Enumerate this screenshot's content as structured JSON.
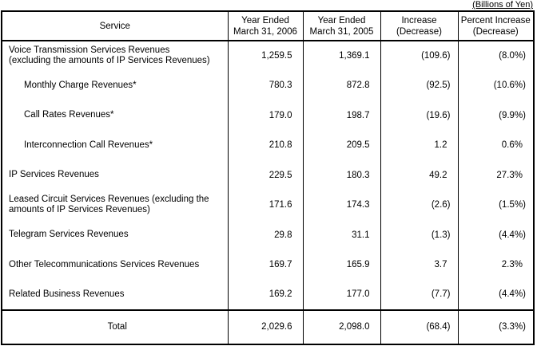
{
  "units_note": "(Billions of Yen)",
  "columns": {
    "service": "Service",
    "y2006": [
      "Year Ended",
      "March 31, 2006"
    ],
    "y2005": [
      "Year Ended",
      "March 31, 2005"
    ],
    "increase": [
      "Increase",
      "(Decrease)"
    ],
    "percent": [
      "Percent Increase",
      "(Decrease)"
    ]
  },
  "rows": [
    {
      "service": [
        "Voice Transmission Services Revenues",
        "(excluding the amounts of IP Services Revenues)"
      ],
      "y2006": "1,259.5",
      "y2005": "1,369.1",
      "inc": "(109.6)",
      "pct": "(8.0%)"
    },
    {
      "service": [
        "Monthly Charge Revenues*"
      ],
      "y2006": "780.3",
      "y2005": "872.8",
      "inc": "(92.5)",
      "pct": "(10.6%)"
    },
    {
      "service": [
        "Call Rates Revenues*"
      ],
      "y2006": "179.0",
      "y2005": "198.7",
      "inc": "(19.6)",
      "pct": "(9.9%)"
    },
    {
      "service": [
        "Interconnection Call Revenues*"
      ],
      "y2006": "210.8",
      "y2005": "209.5",
      "inc": "1.2",
      "pct": "0.6%"
    },
    {
      "service": [
        "IP Services Revenues"
      ],
      "y2006": "229.5",
      "y2005": "180.3",
      "inc": "49.2",
      "pct": "27.3%"
    },
    {
      "service": [
        "Leased Circuit Services Revenues (excluding the",
        "amounts of IP Services Revenues)"
      ],
      "y2006": "171.6",
      "y2005": "174.3",
      "inc": "(2.6)",
      "pct": "(1.5%)"
    },
    {
      "service": [
        "Telegram Services Revenues"
      ],
      "y2006": "29.8",
      "y2005": "31.1",
      "inc": "(1.3)",
      "pct": "(4.4%)"
    },
    {
      "service": [
        "Other Telecommunications Services Revenues"
      ],
      "y2006": "169.7",
      "y2005": "165.9",
      "inc": "3.7",
      "pct": "2.3%"
    },
    {
      "service": [
        "Related Business Revenues"
      ],
      "y2006": "169.2",
      "y2005": "177.0",
      "inc": "(7.7)",
      "pct": "(4.4%)"
    }
  ],
  "total": {
    "label": "Total",
    "y2006": "2,029.6",
    "y2005": "2,098.0",
    "inc": "(68.4)",
    "pct": "(3.3%)"
  }
}
